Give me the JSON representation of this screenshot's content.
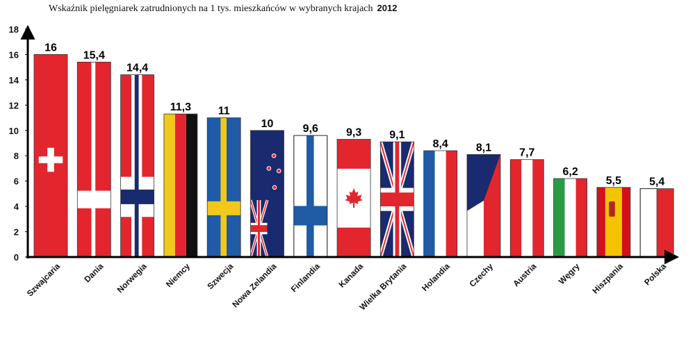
{
  "chart_data": {
    "type": "bar",
    "title": "Wskaźnik pielęgniarek zatrudnionych na 1 tys. mieszkańców w wybranych krajach",
    "year": "2012",
    "xlabel": "",
    "ylabel": "",
    "ylim": [
      0,
      18
    ],
    "yticks": [
      "0",
      "2",
      "4",
      "6",
      "8",
      "10",
      "12",
      "14",
      "16",
      "18"
    ],
    "grid": false,
    "categories": [
      "Szwajcaria",
      "Dania",
      "Norwegia",
      "Niemcy",
      "Szwecja",
      "Nowa Zelandia",
      "Finlandia",
      "Kanada",
      "Wielka Brytania",
      "Holandia",
      "Czechy",
      "Austria",
      "Węgry",
      "Hiszpania",
      "Polska"
    ],
    "values": [
      16,
      15.4,
      14.4,
      11.3,
      11,
      10,
      9.6,
      9.3,
      9.1,
      8.4,
      8.1,
      7.7,
      6.2,
      5.5,
      5.4
    ],
    "value_labels": [
      "16",
      "15,4",
      "14,4",
      "11,3",
      "11",
      "10",
      "9,6",
      "9,3",
      "9,1",
      "8,4",
      "8,1",
      "7,7",
      "6,2",
      "5,5",
      "5,4"
    ],
    "bar_fill": [
      "flag-switzerland",
      "flag-denmark",
      "flag-norway",
      "flag-germany",
      "flag-sweden",
      "flag-new-zealand",
      "flag-finland",
      "flag-canada",
      "flag-united-kingdom",
      "flag-netherlands",
      "flag-czechia",
      "flag-austria",
      "flag-hungary",
      "flag-spain",
      "flag-poland"
    ]
  }
}
